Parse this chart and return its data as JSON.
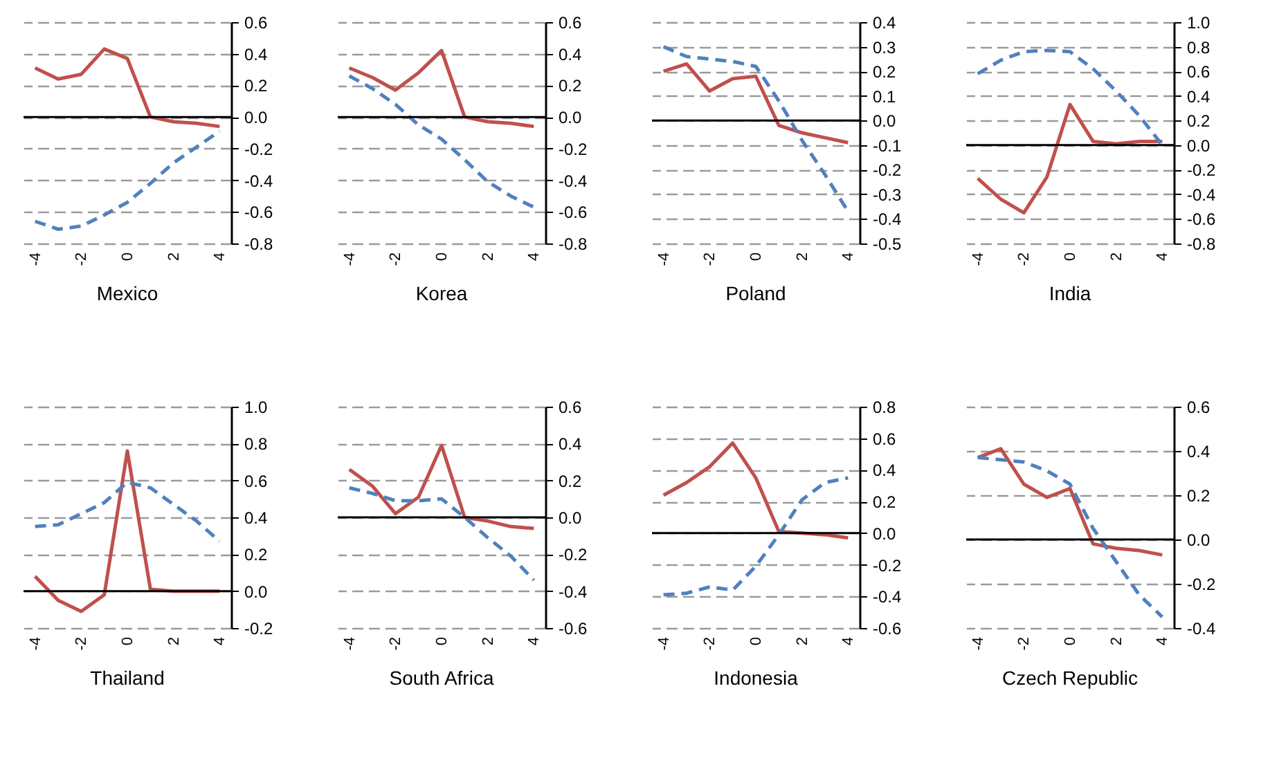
{
  "chart_data": [
    {
      "type": "line",
      "title": "Mexico",
      "categories": [
        "-4",
        null,
        "-2",
        null,
        "0",
        null,
        "2",
        null,
        "4"
      ],
      "series": [
        {
          "color": "#c0504d",
          "line_style": "solid",
          "values": [
            0.31,
            0.24,
            0.27,
            0.43,
            0.37,
            0.0,
            -0.03,
            -0.04,
            -0.06
          ]
        },
        {
          "color": "#4f81bd",
          "line_style": "dashed",
          "values": [
            -0.66,
            -0.71,
            -0.69,
            -0.62,
            -0.54,
            -0.42,
            -0.29,
            -0.19,
            -0.09
          ]
        }
      ],
      "ylim": [
        -0.8,
        0.6
      ],
      "yticks": [
        {
          "value": -0.8,
          "label": "-0.8"
        },
        {
          "value": -0.6,
          "label": "-0.6"
        },
        {
          "value": -0.4,
          "label": "-0.4"
        },
        {
          "value": -0.2,
          "label": "-0.2"
        },
        {
          "value": 0,
          "label": "0.0"
        },
        {
          "value": 0.2,
          "label": "0.2"
        },
        {
          "value": 0.4,
          "label": "0.4"
        },
        {
          "value": 0.6,
          "label": "0.6"
        }
      ],
      "grid": "y",
      "ref_lines": [
        {
          "axis": "y",
          "value": 0,
          "color": "#000000"
        }
      ]
    },
    {
      "type": "line",
      "title": "Korea",
      "categories": [
        "-4",
        null,
        "-2",
        null,
        "0",
        null,
        "2",
        null,
        "4"
      ],
      "series": [
        {
          "color": "#c0504d",
          "line_style": "solid",
          "values": [
            0.31,
            0.25,
            0.17,
            0.28,
            0.42,
            0.0,
            -0.03,
            -0.04,
            -0.06
          ]
        },
        {
          "color": "#4f81bd",
          "line_style": "dashed",
          "values": [
            0.26,
            0.18,
            0.08,
            -0.05,
            -0.14,
            -0.27,
            -0.41,
            -0.5,
            -0.57
          ]
        }
      ],
      "ylim": [
        -0.8,
        0.6
      ],
      "yticks": [
        {
          "value": -0.8,
          "label": "-0.8"
        },
        {
          "value": -0.6,
          "label": "-0.6"
        },
        {
          "value": -0.4,
          "label": "-0.4"
        },
        {
          "value": -0.2,
          "label": "-0.2"
        },
        {
          "value": 0,
          "label": "0.0"
        },
        {
          "value": 0.2,
          "label": "0.2"
        },
        {
          "value": 0.4,
          "label": "0.4"
        },
        {
          "value": 0.6,
          "label": "0.6"
        }
      ],
      "grid": "y",
      "ref_lines": [
        {
          "axis": "y",
          "value": 0,
          "color": "#000000"
        }
      ]
    },
    {
      "type": "line",
      "title": "Poland",
      "categories": [
        "-4",
        null,
        "-2",
        null,
        "0",
        null,
        "2",
        null,
        "4"
      ],
      "series": [
        {
          "color": "#c0504d",
          "line_style": "solid",
          "values": [
            0.2,
            0.23,
            0.12,
            0.17,
            0.18,
            -0.02,
            -0.05,
            -0.07,
            -0.09
          ]
        },
        {
          "color": "#4f81bd",
          "line_style": "dashed",
          "values": [
            0.3,
            0.26,
            0.25,
            0.24,
            0.22,
            0.08,
            -0.08,
            -0.22,
            -0.37
          ]
        }
      ],
      "ylim": [
        -0.5,
        0.4
      ],
      "yticks": [
        {
          "value": -0.5,
          "label": "-0.5"
        },
        {
          "value": -0.4,
          "label": "-0.4"
        },
        {
          "value": -0.3,
          "label": "-0.3"
        },
        {
          "value": -0.2,
          "label": "-0.2"
        },
        {
          "value": -0.1,
          "label": "-0.1"
        },
        {
          "value": 0,
          "label": "0.0"
        },
        {
          "value": 0.1,
          "label": "0.1"
        },
        {
          "value": 0.2,
          "label": "0.2"
        },
        {
          "value": 0.3,
          "label": "0.3"
        },
        {
          "value": 0.4,
          "label": "0.4"
        }
      ],
      "grid": "y",
      "ref_lines": [
        {
          "axis": "y",
          "value": 0,
          "color": "#000000"
        }
      ]
    },
    {
      "type": "line",
      "title": "India",
      "categories": [
        "-4",
        null,
        "-2",
        null,
        "0",
        null,
        "2",
        null,
        "4"
      ],
      "series": [
        {
          "color": "#c0504d",
          "line_style": "solid",
          "values": [
            -0.27,
            -0.44,
            -0.55,
            -0.26,
            0.33,
            0.03,
            0.01,
            0.03,
            0.03
          ]
        },
        {
          "color": "#4f81bd",
          "line_style": "dashed",
          "values": [
            0.58,
            0.69,
            0.76,
            0.77,
            0.76,
            0.62,
            0.44,
            0.24,
            0.0
          ]
        }
      ],
      "ylim": [
        -0.8,
        1.0
      ],
      "yticks": [
        {
          "value": -0.8,
          "label": "-0.8"
        },
        {
          "value": -0.6,
          "label": "-0.6"
        },
        {
          "value": -0.4,
          "label": "-0.4"
        },
        {
          "value": -0.2,
          "label": "-0.2"
        },
        {
          "value": 0,
          "label": "0.0"
        },
        {
          "value": 0.2,
          "label": "0.2"
        },
        {
          "value": 0.4,
          "label": "0.4"
        },
        {
          "value": 0.6,
          "label": "0.6"
        },
        {
          "value": 0.8,
          "label": "0.8"
        },
        {
          "value": 1,
          "label": "1.0"
        }
      ],
      "grid": "y",
      "ref_lines": [
        {
          "axis": "y",
          "value": 0,
          "color": "#000000"
        }
      ]
    },
    {
      "type": "line",
      "title": "Thailand",
      "categories": [
        "-4",
        null,
        "-2",
        null,
        "0",
        null,
        "2",
        null,
        "4"
      ],
      "series": [
        {
          "color": "#c0504d",
          "line_style": "solid",
          "values": [
            0.08,
            -0.05,
            -0.11,
            -0.02,
            0.76,
            0.01,
            0.0,
            0.0,
            0.0
          ]
        },
        {
          "color": "#4f81bd",
          "line_style": "dashed",
          "values": [
            0.35,
            0.36,
            0.42,
            0.48,
            0.59,
            0.56,
            0.47,
            0.38,
            0.27
          ]
        }
      ],
      "ylim": [
        -0.2,
        1.0
      ],
      "yticks": [
        {
          "value": -0.2,
          "label": "-0.2"
        },
        {
          "value": 0,
          "label": "0.0"
        },
        {
          "value": 0.2,
          "label": "0.2"
        },
        {
          "value": 0.4,
          "label": "0.4"
        },
        {
          "value": 0.6,
          "label": "0.6"
        },
        {
          "value": 0.8,
          "label": "0.8"
        },
        {
          "value": 1,
          "label": "1.0"
        }
      ],
      "grid": "y",
      "ref_lines": [
        {
          "axis": "y",
          "value": 0,
          "color": "#000000"
        }
      ]
    },
    {
      "type": "line",
      "title": "South Africa",
      "categories": [
        "-4",
        null,
        "-2",
        null,
        "0",
        null,
        "2",
        null,
        "4"
      ],
      "series": [
        {
          "color": "#c0504d",
          "line_style": "solid",
          "values": [
            0.26,
            0.17,
            0.02,
            0.11,
            0.39,
            0.0,
            -0.02,
            -0.05,
            -0.06
          ]
        },
        {
          "color": "#4f81bd",
          "line_style": "dashed",
          "values": [
            0.16,
            0.13,
            0.09,
            0.09,
            0.1,
            0.0,
            -0.11,
            -0.21,
            -0.34
          ]
        }
      ],
      "ylim": [
        -0.6,
        0.6
      ],
      "yticks": [
        {
          "value": -0.6,
          "label": "-0.6"
        },
        {
          "value": -0.4,
          "label": "-0.4"
        },
        {
          "value": -0.2,
          "label": "-0.2"
        },
        {
          "value": 0,
          "label": "0.0"
        },
        {
          "value": 0.2,
          "label": "0.2"
        },
        {
          "value": 0.4,
          "label": "0.4"
        },
        {
          "value": 0.6,
          "label": "0.6"
        }
      ],
      "grid": "y",
      "ref_lines": [
        {
          "axis": "y",
          "value": 0,
          "color": "#000000"
        }
      ]
    },
    {
      "type": "line",
      "title": "Indonesia",
      "categories": [
        "-4",
        null,
        "-2",
        null,
        "0",
        null,
        "2",
        null,
        "4"
      ],
      "series": [
        {
          "color": "#c0504d",
          "line_style": "solid",
          "values": [
            0.24,
            0.32,
            0.42,
            0.57,
            0.35,
            0.01,
            0.0,
            -0.01,
            -0.03
          ]
        },
        {
          "color": "#4f81bd",
          "line_style": "dashed",
          "values": [
            -0.39,
            -0.38,
            -0.34,
            -0.36,
            -0.21,
            -0.01,
            0.21,
            0.32,
            0.35
          ]
        }
      ],
      "ylim": [
        -0.6,
        0.8
      ],
      "yticks": [
        {
          "value": -0.6,
          "label": "-0.6"
        },
        {
          "value": -0.4,
          "label": "-0.4"
        },
        {
          "value": -0.2,
          "label": "-0.2"
        },
        {
          "value": 0,
          "label": "0.0"
        },
        {
          "value": 0.2,
          "label": "0.2"
        },
        {
          "value": 0.4,
          "label": "0.4"
        },
        {
          "value": 0.6,
          "label": "0.6"
        },
        {
          "value": 0.8,
          "label": "0.8"
        }
      ],
      "grid": "y",
      "ref_lines": [
        {
          "axis": "y",
          "value": 0,
          "color": "#000000"
        }
      ]
    },
    {
      "type": "line",
      "title": "Czech Republic",
      "categories": [
        "-4",
        null,
        "-2",
        null,
        "0",
        null,
        "2",
        null,
        "4"
      ],
      "series": [
        {
          "color": "#c0504d",
          "line_style": "solid",
          "values": [
            0.37,
            0.41,
            0.25,
            0.19,
            0.23,
            -0.02,
            -0.04,
            -0.05,
            -0.07
          ]
        },
        {
          "color": "#4f81bd",
          "line_style": "dashed",
          "values": [
            0.37,
            0.36,
            0.35,
            0.31,
            0.25,
            0.05,
            -0.1,
            -0.25,
            -0.35
          ]
        }
      ],
      "ylim": [
        -0.4,
        0.6
      ],
      "yticks": [
        {
          "value": -0.4,
          "label": "-0.4"
        },
        {
          "value": -0.2,
          "label": "-0.2"
        },
        {
          "value": 0,
          "label": "0.0"
        },
        {
          "value": 0.2,
          "label": "0.2"
        },
        {
          "value": 0.4,
          "label": "0.4"
        },
        {
          "value": 0.6,
          "label": "0.6"
        }
      ],
      "grid": "y",
      "ref_lines": [
        {
          "axis": "y",
          "value": 0,
          "color": "#000000"
        }
      ]
    }
  ]
}
